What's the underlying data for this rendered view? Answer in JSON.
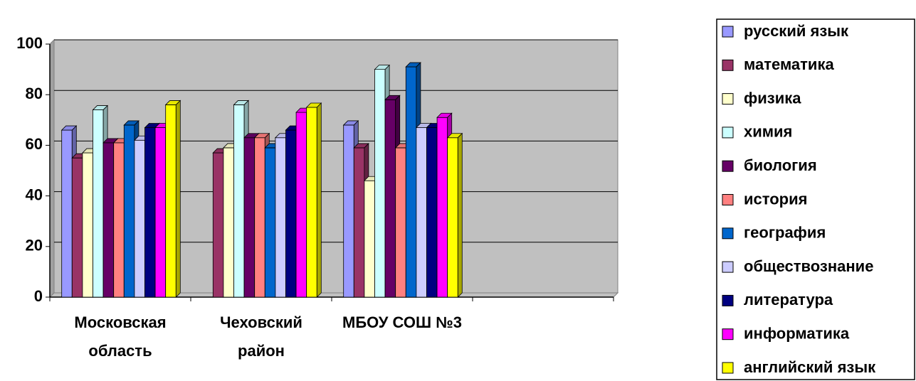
{
  "chart_data": {
    "type": "bar",
    "categories": [
      "Московская область",
      "Чеховский район",
      "МБОУ СОШ №3",
      null
    ],
    "ylim": [
      0,
      100
    ],
    "yticks": [
      0,
      20,
      40,
      60,
      80,
      100
    ],
    "grid": true,
    "legend": "right",
    "series": [
      {
        "name": "русский язык",
        "color": "#9999ff",
        "values": [
          66,
          null,
          68,
          null
        ]
      },
      {
        "name": "математика",
        "color": "#993366",
        "values": [
          55,
          57,
          59,
          null
        ]
      },
      {
        "name": "физика",
        "color": "#ffffcc",
        "values": [
          57,
          59,
          46,
          null
        ]
      },
      {
        "name": "химия",
        "color": "#ccffff",
        "values": [
          74,
          76,
          90,
          null
        ]
      },
      {
        "name": "биология",
        "color": "#660066",
        "values": [
          61,
          63,
          78,
          null
        ]
      },
      {
        "name": "история",
        "color": "#ff8080",
        "values": [
          61,
          63,
          59,
          null
        ]
      },
      {
        "name": "география",
        "color": "#0066cc",
        "values": [
          68,
          59,
          91,
          null
        ]
      },
      {
        "name": "обществознание",
        "color": "#ccccff",
        "values": [
          62,
          63,
          67,
          null
        ]
      },
      {
        "name": "литература",
        "color": "#000080",
        "values": [
          67,
          66,
          67,
          null
        ]
      },
      {
        "name": "информатика",
        "color": "#ff00ff",
        "values": [
          67,
          73,
          71,
          null
        ]
      },
      {
        "name": "английский язык",
        "color": "#ffff00",
        "values": [
          76,
          75,
          63,
          null
        ]
      }
    ]
  }
}
